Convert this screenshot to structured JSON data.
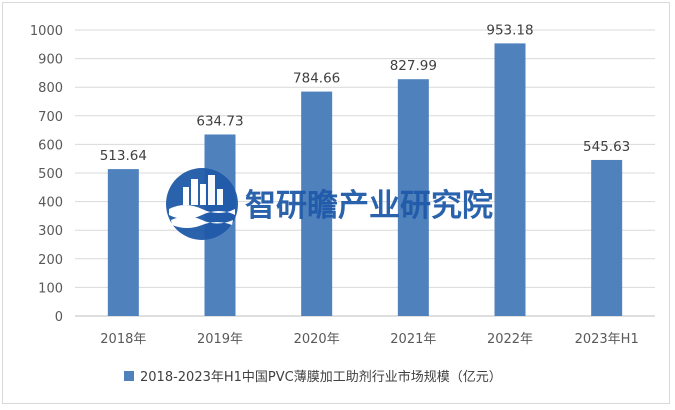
{
  "chart_data": {
    "type": "bar",
    "categories": [
      "2018年",
      "2019年",
      "2020年",
      "2021年",
      "2022年",
      "2023年H1"
    ],
    "series": [
      {
        "name": "2018-2023年H1中国PVC薄膜加工助剂行业市场规模（亿元）",
        "values": [
          513.64,
          634.73,
          784.66,
          827.99,
          953.18,
          545.63
        ]
      }
    ],
    "value_labels": [
      "513.64",
      "634.73",
      "784.66",
      "827.99",
      "953.18",
      "545.63"
    ],
    "y_ticks": [
      "0",
      "100",
      "200",
      "300",
      "400",
      "500",
      "600",
      "700",
      "800",
      "900",
      "1000"
    ],
    "ylim": [
      0,
      1000
    ],
    "grid": true,
    "legend": "bottom",
    "bar_color": "#4f81bd"
  },
  "watermark": {
    "text": "智研瞻产业研究院",
    "logo_icon": "city-skyline-wave-logo-icon",
    "color": "#1f5aa8"
  }
}
